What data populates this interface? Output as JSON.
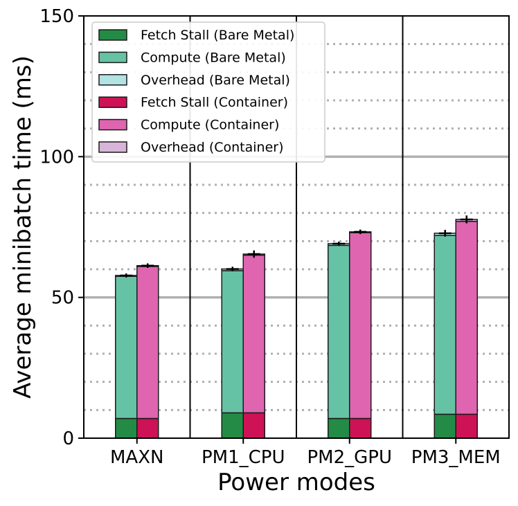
{
  "chart_data": {
    "type": "bar",
    "stacked": true,
    "title": "",
    "xlabel": "Power modes",
    "ylabel": "Average minibatch time (ms)",
    "ylim": [
      0,
      150
    ],
    "yticks": [
      0,
      50,
      100,
      150
    ],
    "major_gridlines": [
      50,
      100
    ],
    "minor_gridlines": [
      10,
      20,
      30,
      40,
      60,
      70,
      80,
      90,
      110,
      120,
      130,
      140
    ],
    "categories": [
      "MAXN",
      "PM1_CPU",
      "PM2_GPU",
      "PM3_MEM"
    ],
    "groups": [
      {
        "name": "Bare Metal",
        "series": [
          {
            "name": "Fetch Stall (Bare Metal)",
            "color": "#238b45",
            "values": [
              7,
              9,
              7,
              8.5
            ]
          },
          {
            "name": "Compute (Bare Metal)",
            "color": "#66c2a4",
            "values": [
              50.5,
              50.5,
              61.5,
              63.5
            ]
          },
          {
            "name": "Overhead (Bare Metal)",
            "color": "#b2e2e2",
            "values": [
              0.3,
              0.6,
              0.6,
              0.8
            ]
          }
        ],
        "errors": [
          0.7,
          0.8,
          0.7,
          1.2
        ]
      },
      {
        "name": "Container",
        "series": [
          {
            "name": "Fetch Stall (Container)",
            "color": "#ce1256",
            "values": [
              7,
              9,
              7,
              8.5
            ]
          },
          {
            "name": "Compute (Container)",
            "color": "#df65b0",
            "values": [
              54,
              56,
              66,
              68.5
            ]
          },
          {
            "name": "Overhead (Container)",
            "color": "#d7b5d8",
            "values": [
              0.3,
              0.4,
              0.3,
              0.7
            ]
          }
        ],
        "errors": [
          0.8,
          1.3,
          0.8,
          1.4
        ]
      }
    ],
    "legend": {
      "position": "top-left",
      "entries": [
        {
          "label": "Fetch Stall (Bare Metal)",
          "color": "#238b45"
        },
        {
          "label": "Compute (Bare Metal)",
          "color": "#66c2a4"
        },
        {
          "label": "Overhead (Bare Metal)",
          "color": "#b2e2e2"
        },
        {
          "label": "Fetch Stall (Container)",
          "color": "#ce1256"
        },
        {
          "label": "Compute (Container)",
          "color": "#df65b0"
        },
        {
          "label": "Overhead (Container)",
          "color": "#d7b5d8"
        }
      ]
    }
  }
}
